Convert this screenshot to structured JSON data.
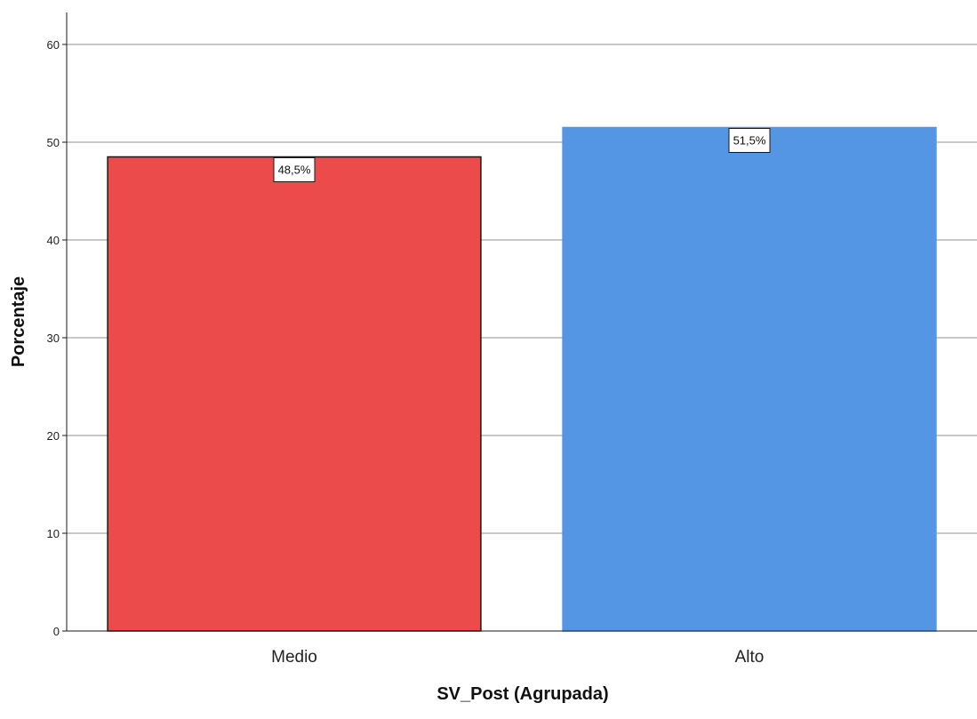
{
  "chart_data": {
    "type": "bar",
    "categories": [
      "Medio",
      "Alto"
    ],
    "values": [
      48.5,
      51.5
    ],
    "data_labels": [
      "48,5%",
      "51,5%"
    ],
    "bar_colors": [
      "#ec4b4b",
      "#5596e4"
    ],
    "bar_stroke_colors": [
      "#1a1a1a",
      "#5596e4"
    ],
    "xlabel": "SV_Post (Agrupada)",
    "ylabel": "Porcentaje",
    "ylim": [
      0,
      60
    ],
    "yticks": [
      0,
      10,
      20,
      30,
      40,
      50,
      60
    ],
    "grid": true,
    "grid_color": "#c8c8c8"
  }
}
